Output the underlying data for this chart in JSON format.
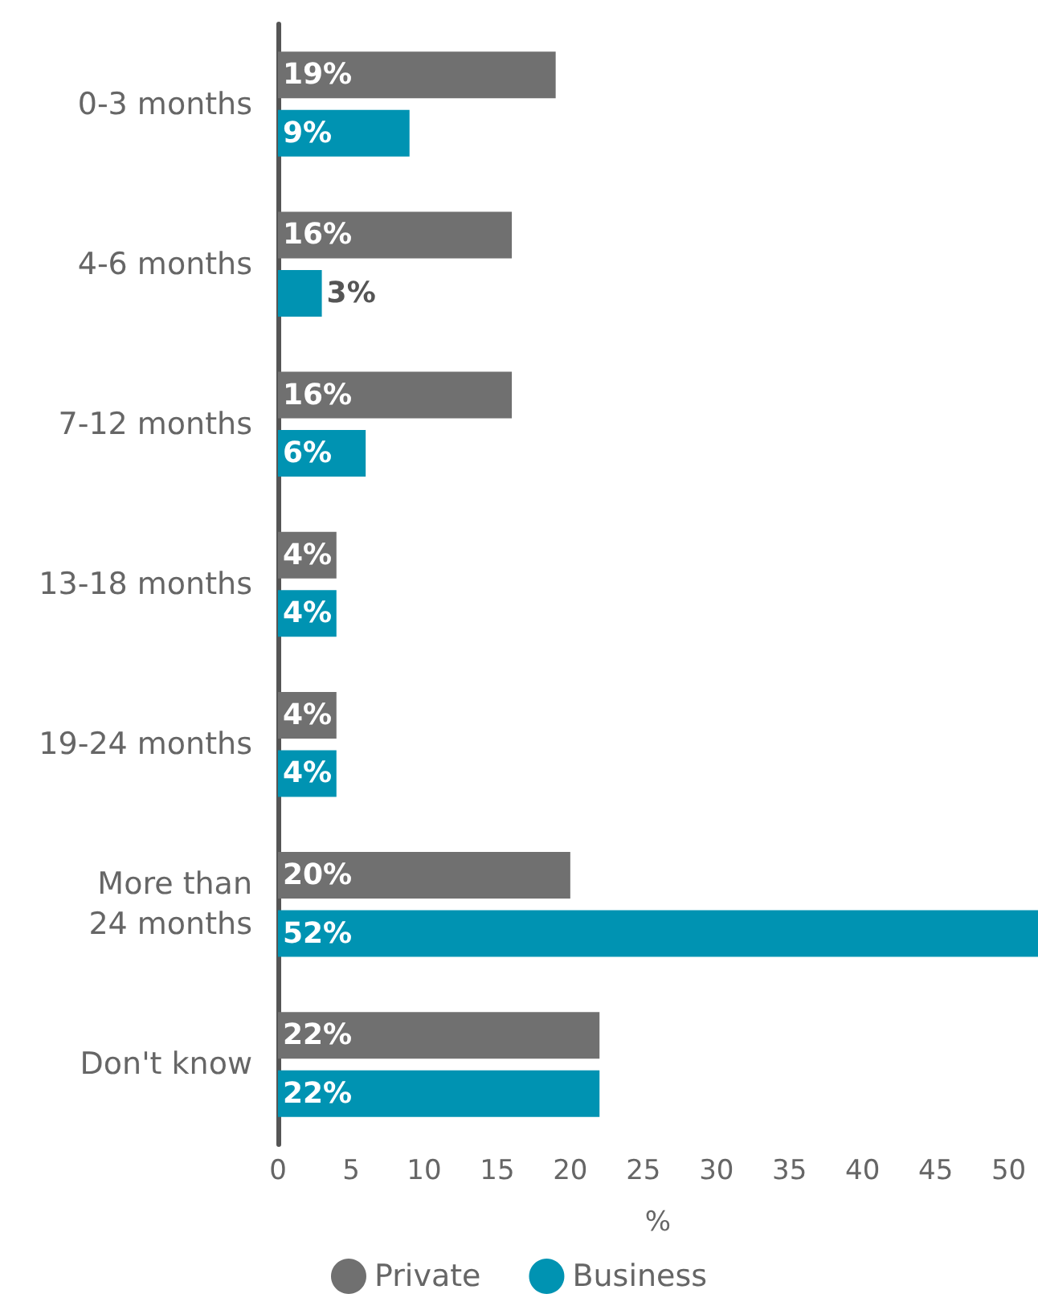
{
  "chart_data": {
    "type": "bar",
    "orientation": "horizontal",
    "categories": [
      "0-3 months",
      "4-6 months",
      "7-12 months",
      "13-18 months",
      "19-24 months",
      "More than\n24 months",
      "Don't know"
    ],
    "series": [
      {
        "name": "Private",
        "color": "#707070",
        "values": [
          19,
          16,
          16,
          4,
          4,
          20,
          22
        ],
        "value_labels": [
          "19%",
          "16%",
          "16%",
          "4%",
          "4%",
          "20%",
          "22%"
        ]
      },
      {
        "name": "Business",
        "color": "#0093b2",
        "values": [
          9,
          3,
          6,
          4,
          4,
          52,
          22
        ],
        "value_labels": [
          "9%",
          "3%",
          "6%",
          "4%",
          "4%",
          "52%",
          "22%"
        ]
      }
    ],
    "xlim": [
      0,
      52
    ],
    "xticks": [
      0,
      5,
      10,
      15,
      20,
      25,
      30,
      35,
      40,
      45,
      50
    ],
    "xlabel": "%",
    "grid": false,
    "legend": "bottom"
  }
}
